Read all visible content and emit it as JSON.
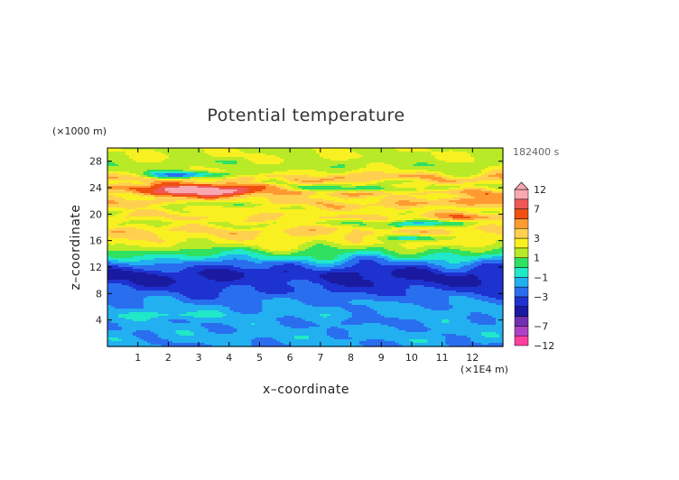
{
  "chart_data": {
    "type": "heatmap",
    "title": "Potential temperature",
    "xlabel": "x–coordinate",
    "ylabel": "z–coordinate",
    "x_unit": "(×1E4 m)",
    "y_unit": "(×1000 m)",
    "time_label": "182400 s",
    "xlim": [
      0,
      13
    ],
    "ylim": [
      0,
      30
    ],
    "x_ticks": [
      1,
      2,
      3,
      4,
      5,
      6,
      7,
      8,
      9,
      10,
      11,
      12
    ],
    "y_ticks": [
      4,
      8,
      12,
      16,
      20,
      24,
      28
    ],
    "colorbar": {
      "levels": [
        -12,
        -9,
        -7,
        -5,
        -4,
        -3,
        -2,
        -1,
        0,
        1,
        2,
        3,
        4,
        5,
        7,
        9,
        12
      ],
      "colors": [
        "#ff3fa0",
        "#b040c8",
        "#7030b0",
        "#1a1aa0",
        "#1e32d0",
        "#2a6ef0",
        "#22b0f0",
        "#20e8c8",
        "#30e060",
        "#b8ea28",
        "#f8f020",
        "#ffd050",
        "#ff9a30",
        "#f05010",
        "#f05858",
        "#f8a8b0"
      ],
      "labels": [
        {
          "value": 12,
          "text": "12"
        },
        {
          "value": 7,
          "text": "7"
        },
        {
          "value": 3,
          "text": "3"
        },
        {
          "value": 1,
          "text": "1"
        },
        {
          "value": -1,
          "text": "−1"
        },
        {
          "value": -3,
          "text": "−3"
        },
        {
          "value": -7,
          "text": "−7"
        },
        {
          "value": -12,
          "text": "−12"
        }
      ],
      "extend": "max"
    },
    "profile": [
      {
        "z": 0.0,
        "v": -2.0
      },
      {
        "z": 1.5,
        "v": -1.5
      },
      {
        "z": 3.0,
        "v": -1.8
      },
      {
        "z": 4.5,
        "v": -1.5
      },
      {
        "z": 6.0,
        "v": -1.8
      },
      {
        "z": 7.0,
        "v": -2.2
      },
      {
        "z": 8.0,
        "v": -2.9
      },
      {
        "z": 9.0,
        "v": -3.6
      },
      {
        "z": 10.0,
        "v": -4.3
      },
      {
        "z": 11.0,
        "v": -4.2
      },
      {
        "z": 12.0,
        "v": -3.0
      },
      {
        "z": 12.8,
        "v": -2.0
      },
      {
        "z": 13.5,
        "v": -0.5
      },
      {
        "z": 14.5,
        "v": 0.8
      },
      {
        "z": 15.5,
        "v": 2.3
      },
      {
        "z": 16.5,
        "v": 2.8
      },
      {
        "z": 17.5,
        "v": 3.5
      },
      {
        "z": 18.5,
        "v": 1.8
      },
      {
        "z": 19.5,
        "v": 3.3
      },
      {
        "z": 20.5,
        "v": 2.2
      },
      {
        "z": 21.5,
        "v": 3.8
      },
      {
        "z": 22.5,
        "v": 2.6
      },
      {
        "z": 23.5,
        "v": 4.5
      },
      {
        "z": 24.5,
        "v": 1.8
      },
      {
        "z": 25.5,
        "v": 4.2
      },
      {
        "z": 26.5,
        "v": 2.0
      },
      {
        "z": 27.5,
        "v": 1.3
      },
      {
        "z": 28.5,
        "v": 2.0
      },
      {
        "z": 30.0,
        "v": 1.8
      }
    ],
    "features": [
      {
        "x": 3.1,
        "z": 23.7,
        "rx": 1.7,
        "rz": 0.9,
        "amp": 6.0
      },
      {
        "x": 3.6,
        "z": 23.3,
        "rx": 0.9,
        "rz": 0.6,
        "amp": 2.5
      },
      {
        "x": 2.4,
        "z": 24.0,
        "rx": 0.9,
        "rz": 0.5,
        "amp": 3.0
      },
      {
        "x": 2.8,
        "z": 25.9,
        "rx": 1.7,
        "rz": 0.55,
        "amp": -5.0
      },
      {
        "x": 3.8,
        "z": 21.4,
        "rx": 1.4,
        "rz": 0.45,
        "amp": -3.0
      },
      {
        "x": 8.5,
        "z": 23.8,
        "rx": 2.6,
        "rz": 0.45,
        "amp": -3.2
      },
      {
        "x": 10.0,
        "z": 18.6,
        "rx": 1.6,
        "rz": 0.5,
        "amp": -3.0
      },
      {
        "x": 10.2,
        "z": 16.4,
        "rx": 1.0,
        "rz": 0.45,
        "amp": -3.5
      },
      {
        "x": 5.5,
        "z": 9.8,
        "rx": 2.0,
        "rz": 1.0,
        "amp": 1.0
      },
      {
        "x": 2.0,
        "z": 4.8,
        "rx": 1.5,
        "rz": 0.5,
        "amp": 1.2
      },
      {
        "x": 8.5,
        "z": 3.8,
        "rx": 1.5,
        "rz": 0.7,
        "amp": -0.8
      },
      {
        "x": 11.5,
        "z": 19.5,
        "rx": 1.2,
        "rz": 0.6,
        "amp": 1.8
      },
      {
        "x": 12.3,
        "z": 22.0,
        "rx": 1.0,
        "rz": 0.6,
        "amp": 2.0
      }
    ]
  }
}
